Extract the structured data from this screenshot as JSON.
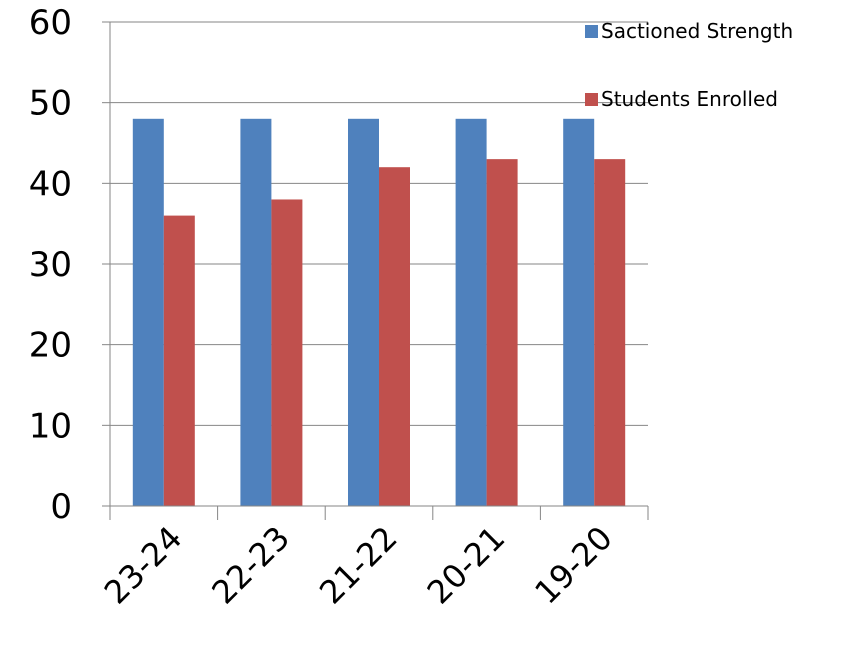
{
  "chart_data": {
    "type": "bar",
    "categories": [
      "23-24",
      "22-23",
      "21-22",
      "20-21",
      "19-20"
    ],
    "series": [
      {
        "name": "Sactioned Strength",
        "color": "#4F81BD",
        "values": [
          48,
          48,
          48,
          48,
          48
        ]
      },
      {
        "name": "Students Enrolled",
        "color": "#C0504D",
        "values": [
          36,
          38,
          42,
          43,
          43
        ]
      }
    ],
    "ylim": [
      0,
      60
    ],
    "yticks": [
      0,
      10,
      20,
      30,
      40,
      50,
      60
    ],
    "grid": true,
    "legend_position": "top-right",
    "title": "",
    "xlabel": "",
    "ylabel": ""
  }
}
